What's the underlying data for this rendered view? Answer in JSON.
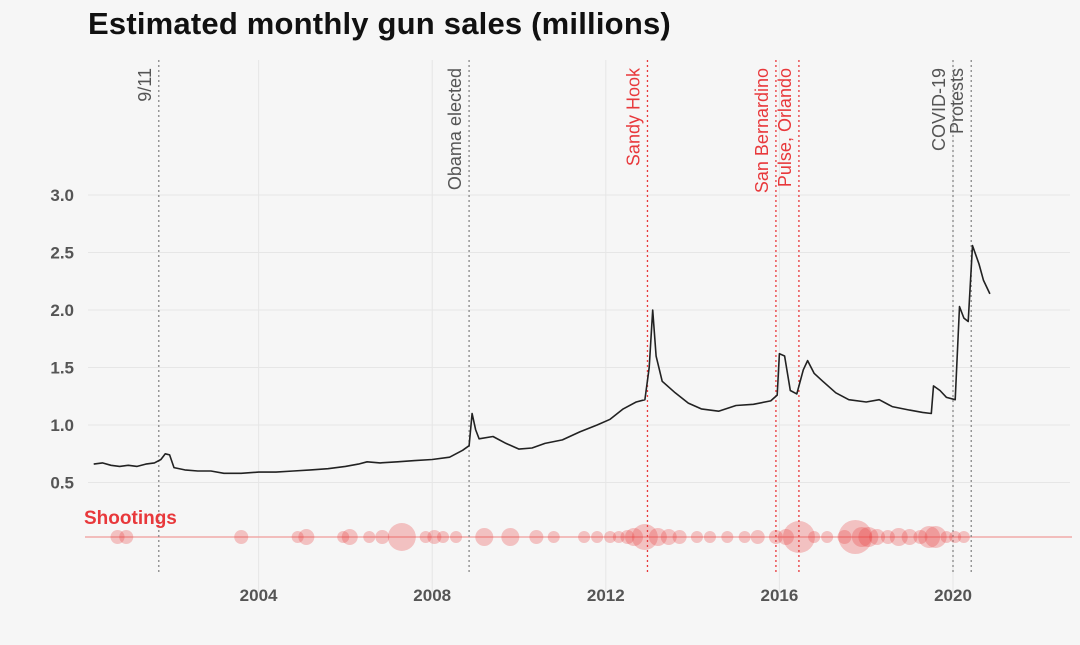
{
  "title": "Estimated monthly gun sales (millions)",
  "chart_data": {
    "type": "line",
    "title": "Estimated monthly gun sales (millions)",
    "xlabel": "",
    "ylabel": "",
    "xlim": [
      2000.0,
      2021.0
    ],
    "ylim": [
      0.0,
      3.4
    ],
    "x_ticks": [
      {
        "value": 2004,
        "label": "2004"
      },
      {
        "value": 2008,
        "label": "2008"
      },
      {
        "value": 2012,
        "label": "2012"
      },
      {
        "value": 2016,
        "label": "2016"
      },
      {
        "value": 2020,
        "label": "2020"
      }
    ],
    "y_ticks": [
      {
        "value": 0.5,
        "label": "0.5"
      },
      {
        "value": 1.0,
        "label": "1.0"
      },
      {
        "value": 1.5,
        "label": "1.5"
      },
      {
        "value": 2.0,
        "label": "2.0"
      },
      {
        "value": 2.5,
        "label": "2.5"
      },
      {
        "value": 3.0,
        "label": "3.0"
      }
    ],
    "grid": true,
    "series": [
      {
        "color": "#222222",
        "points": [
          [
            2000.2,
            0.66
          ],
          [
            2000.4,
            0.67
          ],
          [
            2000.6,
            0.65
          ],
          [
            2000.8,
            0.64
          ],
          [
            2001.0,
            0.65
          ],
          [
            2001.2,
            0.64
          ],
          [
            2001.4,
            0.66
          ],
          [
            2001.6,
            0.67
          ],
          [
            2001.75,
            0.7
          ],
          [
            2001.85,
            0.75
          ],
          [
            2001.95,
            0.74
          ],
          [
            2002.05,
            0.63
          ],
          [
            2002.3,
            0.61
          ],
          [
            2002.6,
            0.6
          ],
          [
            2002.9,
            0.6
          ],
          [
            2003.2,
            0.58
          ],
          [
            2003.6,
            0.58
          ],
          [
            2004.0,
            0.59
          ],
          [
            2004.4,
            0.59
          ],
          [
            2004.8,
            0.6
          ],
          [
            2005.2,
            0.61
          ],
          [
            2005.6,
            0.62
          ],
          [
            2006.0,
            0.64
          ],
          [
            2006.3,
            0.66
          ],
          [
            2006.5,
            0.68
          ],
          [
            2006.8,
            0.67
          ],
          [
            2007.2,
            0.68
          ],
          [
            2007.6,
            0.69
          ],
          [
            2008.0,
            0.7
          ],
          [
            2008.4,
            0.72
          ],
          [
            2008.7,
            0.78
          ],
          [
            2008.85,
            0.82
          ],
          [
            2008.92,
            1.1
          ],
          [
            2009.0,
            0.96
          ],
          [
            2009.08,
            0.88
          ],
          [
            2009.4,
            0.9
          ],
          [
            2009.7,
            0.84
          ],
          [
            2010.0,
            0.79
          ],
          [
            2010.3,
            0.8
          ],
          [
            2010.6,
            0.84
          ],
          [
            2011.0,
            0.87
          ],
          [
            2011.4,
            0.94
          ],
          [
            2011.8,
            1.0
          ],
          [
            2012.1,
            1.05
          ],
          [
            2012.4,
            1.14
          ],
          [
            2012.7,
            1.2
          ],
          [
            2012.9,
            1.22
          ],
          [
            2013.0,
            1.5
          ],
          [
            2013.08,
            2.0
          ],
          [
            2013.16,
            1.6
          ],
          [
            2013.3,
            1.38
          ],
          [
            2013.6,
            1.28
          ],
          [
            2013.9,
            1.19
          ],
          [
            2014.2,
            1.14
          ],
          [
            2014.6,
            1.12
          ],
          [
            2015.0,
            1.17
          ],
          [
            2015.4,
            1.18
          ],
          [
            2015.8,
            1.21
          ],
          [
            2015.95,
            1.26
          ],
          [
            2016.0,
            1.62
          ],
          [
            2016.12,
            1.6
          ],
          [
            2016.25,
            1.3
          ],
          [
            2016.4,
            1.27
          ],
          [
            2016.55,
            1.48
          ],
          [
            2016.65,
            1.56
          ],
          [
            2016.8,
            1.45
          ],
          [
            2017.0,
            1.38
          ],
          [
            2017.3,
            1.28
          ],
          [
            2017.6,
            1.22
          ],
          [
            2018.0,
            1.2
          ],
          [
            2018.3,
            1.22
          ],
          [
            2018.6,
            1.16
          ],
          [
            2019.0,
            1.13
          ],
          [
            2019.3,
            1.11
          ],
          [
            2019.5,
            1.1
          ],
          [
            2019.55,
            1.34
          ],
          [
            2019.7,
            1.3
          ],
          [
            2019.85,
            1.24
          ],
          [
            2020.05,
            1.22
          ],
          [
            2020.15,
            2.03
          ],
          [
            2020.25,
            1.93
          ],
          [
            2020.35,
            1.9
          ],
          [
            2020.45,
            2.56
          ],
          [
            2020.6,
            2.4
          ],
          [
            2020.7,
            2.26
          ],
          [
            2020.85,
            2.14
          ]
        ]
      }
    ],
    "events": [
      {
        "x": 2001.7,
        "label": "9/11",
        "color": "#555555"
      },
      {
        "x": 2008.85,
        "label": "Obama elected",
        "color": "#555555"
      },
      {
        "x": 2012.96,
        "label": "Sandy Hook",
        "color": "#e8383b"
      },
      {
        "x": 2015.92,
        "label": "San Bernardino",
        "color": "#e8383b"
      },
      {
        "x": 2016.45,
        "label": "Pulse, Orlando",
        "color": "#e8383b"
      },
      {
        "x": 2020.0,
        "label": "COVID-19",
        "color": "#555555"
      },
      {
        "x": 2020.42,
        "label": "Protests",
        "color": "#555555"
      }
    ],
    "shootings": {
      "label": "Shootings",
      "color": "#e8383b",
      "events": [
        {
          "x": 2000.75,
          "size": 7
        },
        {
          "x": 2000.95,
          "size": 7
        },
        {
          "x": 2003.6,
          "size": 7
        },
        {
          "x": 2004.9,
          "size": 6
        },
        {
          "x": 2005.1,
          "size": 8
        },
        {
          "x": 2005.95,
          "size": 6
        },
        {
          "x": 2006.1,
          "size": 8
        },
        {
          "x": 2006.55,
          "size": 6
        },
        {
          "x": 2006.85,
          "size": 7
        },
        {
          "x": 2007.3,
          "size": 14
        },
        {
          "x": 2007.85,
          "size": 6
        },
        {
          "x": 2008.05,
          "size": 7
        },
        {
          "x": 2008.25,
          "size": 6
        },
        {
          "x": 2008.55,
          "size": 6
        },
        {
          "x": 2009.2,
          "size": 9
        },
        {
          "x": 2009.8,
          "size": 9
        },
        {
          "x": 2010.4,
          "size": 7
        },
        {
          "x": 2010.8,
          "size": 6
        },
        {
          "x": 2011.5,
          "size": 6
        },
        {
          "x": 2011.8,
          "size": 6
        },
        {
          "x": 2012.1,
          "size": 6
        },
        {
          "x": 2012.3,
          "size": 6
        },
        {
          "x": 2012.5,
          "size": 7
        },
        {
          "x": 2012.65,
          "size": 9
        },
        {
          "x": 2012.9,
          "size": 13
        },
        {
          "x": 2013.2,
          "size": 9
        },
        {
          "x": 2013.45,
          "size": 8
        },
        {
          "x": 2013.7,
          "size": 7
        },
        {
          "x": 2014.1,
          "size": 6
        },
        {
          "x": 2014.4,
          "size": 6
        },
        {
          "x": 2014.8,
          "size": 6
        },
        {
          "x": 2015.2,
          "size": 6
        },
        {
          "x": 2015.5,
          "size": 7
        },
        {
          "x": 2015.92,
          "size": 7
        },
        {
          "x": 2016.15,
          "size": 8
        },
        {
          "x": 2016.45,
          "size": 16
        },
        {
          "x": 2016.8,
          "size": 6
        },
        {
          "x": 2017.1,
          "size": 6
        },
        {
          "x": 2017.5,
          "size": 7
        },
        {
          "x": 2017.75,
          "size": 17
        },
        {
          "x": 2017.9,
          "size": 10
        },
        {
          "x": 2018.05,
          "size": 10
        },
        {
          "x": 2018.25,
          "size": 8
        },
        {
          "x": 2018.5,
          "size": 7
        },
        {
          "x": 2018.75,
          "size": 9
        },
        {
          "x": 2019.0,
          "size": 8
        },
        {
          "x": 2019.25,
          "size": 7
        },
        {
          "x": 2019.45,
          "size": 11
        },
        {
          "x": 2019.6,
          "size": 11
        },
        {
          "x": 2019.85,
          "size": 6
        },
        {
          "x": 2020.05,
          "size": 6
        },
        {
          "x": 2020.25,
          "size": 6
        }
      ]
    }
  }
}
